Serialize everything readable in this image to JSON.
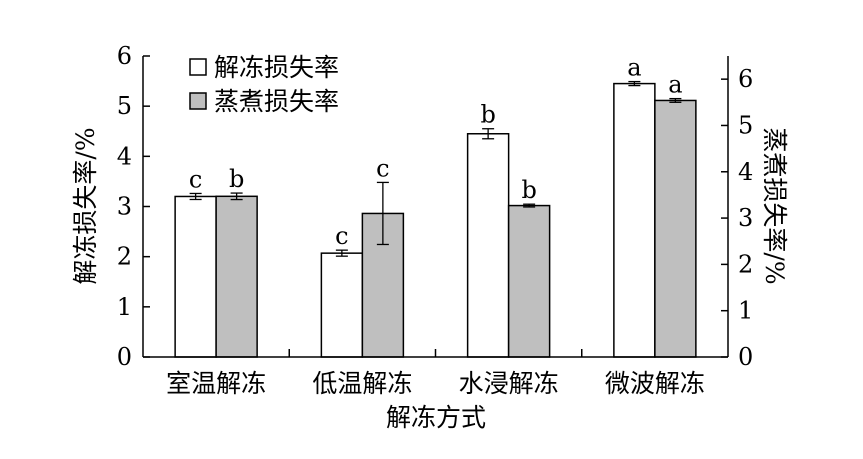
{
  "chart_data": {
    "type": "bar",
    "categories": [
      "室温解冻",
      "低温解冻",
      "水浸解冻",
      "微波解冻"
    ],
    "xlabel": "解冻方式",
    "ylabel": "解冻损失率/%",
    "y2label": "蒸煮损失率/%",
    "ylim": [
      0,
      6
    ],
    "y2lim": [
      0,
      6.5
    ],
    "yticks": [
      "0",
      "1",
      "2",
      "3",
      "4",
      "5",
      "6"
    ],
    "y2ticks": [
      "0",
      "1",
      "2",
      "3",
      "4",
      "5",
      "6"
    ],
    "legend_position": "top-left",
    "grid": false,
    "series": [
      {
        "name": "解冻损失率",
        "axis": "left",
        "color": "#ffffff",
        "values": [
          3.2,
          2.07,
          4.45,
          5.45
        ],
        "errors": [
          0.06,
          0.06,
          0.1,
          0.04
        ],
        "labels": [
          "c",
          "c",
          "b",
          "a"
        ]
      },
      {
        "name": "蒸煮损失率",
        "axis": "right",
        "color": "#bfbfbf",
        "values": [
          3.47,
          3.1,
          3.27,
          5.54
        ],
        "errors": [
          0.07,
          0.67,
          0.03,
          0.04
        ],
        "labels": [
          "b",
          "c",
          "b",
          "a"
        ]
      }
    ]
  }
}
